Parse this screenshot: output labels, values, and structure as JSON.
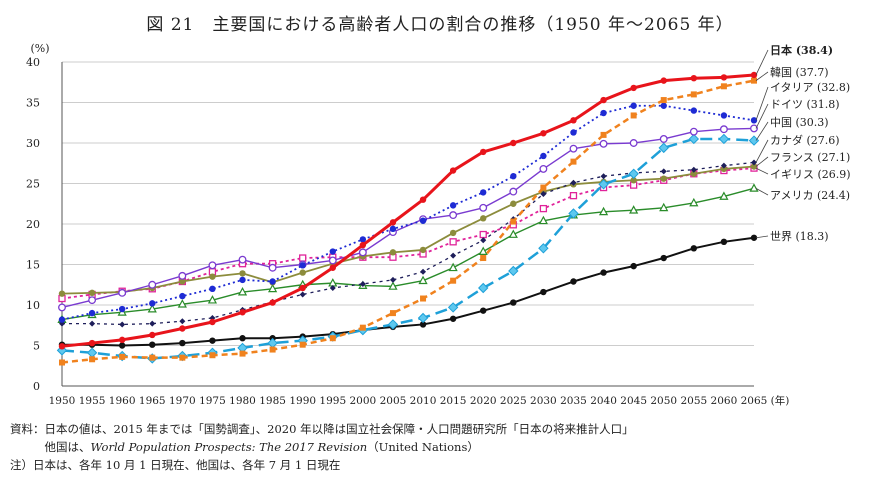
{
  "chart_data": {
    "type": "line",
    "title": "図 21　主要国における高齢者人口の割合の推移（1950 年～2065 年）",
    "ylabel": "(%)",
    "xlabel": "(年)",
    "ylim": [
      0,
      40
    ],
    "yticks": [
      0,
      5,
      10,
      15,
      20,
      25,
      30,
      35,
      40
    ],
    "grid": true,
    "x": [
      1950,
      1955,
      1960,
      1965,
      1970,
      1975,
      1980,
      1985,
      1990,
      1995,
      2000,
      2005,
      2010,
      2015,
      2020,
      2025,
      2030,
      2035,
      2040,
      2045,
      2050,
      2055,
      2060,
      2065
    ],
    "series": [
      {
        "label": "日本 (38.4)",
        "color": "#e8141b",
        "dash": "",
        "width": 3,
        "marker": "circle-fill",
        "values": [
          4.9,
          5.3,
          5.7,
          6.3,
          7.1,
          7.9,
          9.1,
          10.3,
          12.1,
          14.6,
          17.4,
          20.2,
          23.0,
          26.6,
          28.9,
          30.0,
          31.2,
          32.8,
          35.3,
          36.8,
          37.7,
          38.0,
          38.1,
          38.4
        ]
      },
      {
        "label": "韓国 (37.7)",
        "color": "#f0821e",
        "dash": "6,4",
        "width": 2.5,
        "marker": "square-fill",
        "values": [
          2.9,
          3.3,
          3.6,
          3.5,
          3.5,
          3.8,
          4.0,
          4.5,
          5.1,
          5.9,
          7.2,
          9.0,
          10.8,
          13.0,
          15.8,
          20.3,
          24.5,
          27.7,
          31.0,
          33.4,
          35.3,
          36.0,
          37.0,
          37.7
        ]
      },
      {
        "label": "イタリア (32.8)",
        "color": "#1e2bd4",
        "dash": "2,3",
        "width": 1.8,
        "marker": "circle-fill",
        "values": [
          8.2,
          9.0,
          9.5,
          10.2,
          11.1,
          12.0,
          13.1,
          12.9,
          14.9,
          16.6,
          18.1,
          19.4,
          20.4,
          22.3,
          23.9,
          25.9,
          28.4,
          31.3,
          33.7,
          34.6,
          34.6,
          34.0,
          33.4,
          32.8
        ]
      },
      {
        "label": "ドイツ (31.8)",
        "color": "#7a3bd0",
        "dash": "",
        "width": 1.4,
        "marker": "circle-open",
        "values": [
          9.7,
          10.6,
          11.5,
          12.5,
          13.6,
          14.9,
          15.6,
          14.6,
          15.0,
          15.5,
          16.5,
          19.0,
          20.6,
          21.1,
          22.0,
          24.0,
          26.8,
          29.3,
          29.9,
          30.0,
          30.5,
          31.4,
          31.7,
          31.8
        ]
      },
      {
        "label": "中国 (30.3)",
        "color": "#1ea0d8",
        "dash": "12,6",
        "width": 2.5,
        "marker": "diamond-fill",
        "values": [
          4.4,
          4.1,
          3.7,
          3.4,
          3.7,
          4.1,
          4.7,
          5.3,
          5.6,
          6.1,
          6.9,
          7.6,
          8.4,
          9.7,
          12.1,
          14.2,
          17.0,
          21.3,
          24.9,
          26.2,
          29.4,
          30.5,
          30.5,
          30.3
        ]
      },
      {
        "label": "カナダ (27.6)",
        "color": "#1e1e5a",
        "dash": "3,4",
        "width": 1.3,
        "marker": "diamond-small",
        "values": [
          7.7,
          7.7,
          7.6,
          7.7,
          8.0,
          8.4,
          9.4,
          10.4,
          11.3,
          12.1,
          12.6,
          13.1,
          14.1,
          16.1,
          18.0,
          20.6,
          23.7,
          25.1,
          25.9,
          26.3,
          26.5,
          26.7,
          27.2,
          27.6
        ]
      },
      {
        "label": "フランス (27.1)",
        "color": "#8c8c3c",
        "dash": "",
        "width": 1.8,
        "marker": "circle-fill",
        "values": [
          11.4,
          11.5,
          11.6,
          12.1,
          12.9,
          13.5,
          13.9,
          12.8,
          14.0,
          15.1,
          16.0,
          16.5,
          16.8,
          18.9,
          20.7,
          22.5,
          24.0,
          24.9,
          25.2,
          25.4,
          25.6,
          26.2,
          26.8,
          27.1
        ]
      },
      {
        "label": "イギリス (26.9)",
        "color": "#e0239a",
        "dash": "3,3",
        "width": 1.8,
        "marker": "square-open",
        "values": [
          10.8,
          11.3,
          11.7,
          12.0,
          12.9,
          14.1,
          15.1,
          15.1,
          15.8,
          15.9,
          15.9,
          15.9,
          16.3,
          17.8,
          18.7,
          19.9,
          21.9,
          23.5,
          24.5,
          24.8,
          25.4,
          26.2,
          26.6,
          26.9
        ]
      },
      {
        "label": "アメリカ (24.4)",
        "color": "#2a8c2a",
        "dash": "",
        "width": 1.4,
        "marker": "triangle-open",
        "values": [
          8.2,
          8.8,
          9.1,
          9.5,
          10.1,
          10.6,
          11.6,
          12.0,
          12.5,
          12.7,
          12.4,
          12.3,
          13.0,
          14.6,
          16.6,
          18.7,
          20.4,
          21.1,
          21.5,
          21.7,
          22.0,
          22.6,
          23.4,
          24.4
        ]
      },
      {
        "label": "世界 (18.3)",
        "color": "#111111",
        "dash": "",
        "width": 2,
        "marker": "circle-fill",
        "values": [
          5.1,
          5.1,
          5.0,
          5.1,
          5.3,
          5.6,
          5.9,
          5.9,
          6.1,
          6.4,
          6.9,
          7.3,
          7.6,
          8.3,
          9.3,
          10.3,
          11.6,
          12.9,
          14.0,
          14.8,
          15.8,
          17.0,
          17.8,
          18.3
        ]
      }
    ]
  },
  "notes": {
    "line1": "資料：日本の値は、2015 年までは「国勢調査」、2020 年以降は国立社会保障・人口問題研究所「日本の将来推計人口」",
    "line2_prefix": "　　　他国は、",
    "line2_italic": "World Population Prospects: The 2017 Revision",
    "line2_suffix": "（United Nations）",
    "line3": "注）日本は、各年 10 月 1 日現在、他国は、各年 7 月 1 日現在"
  }
}
